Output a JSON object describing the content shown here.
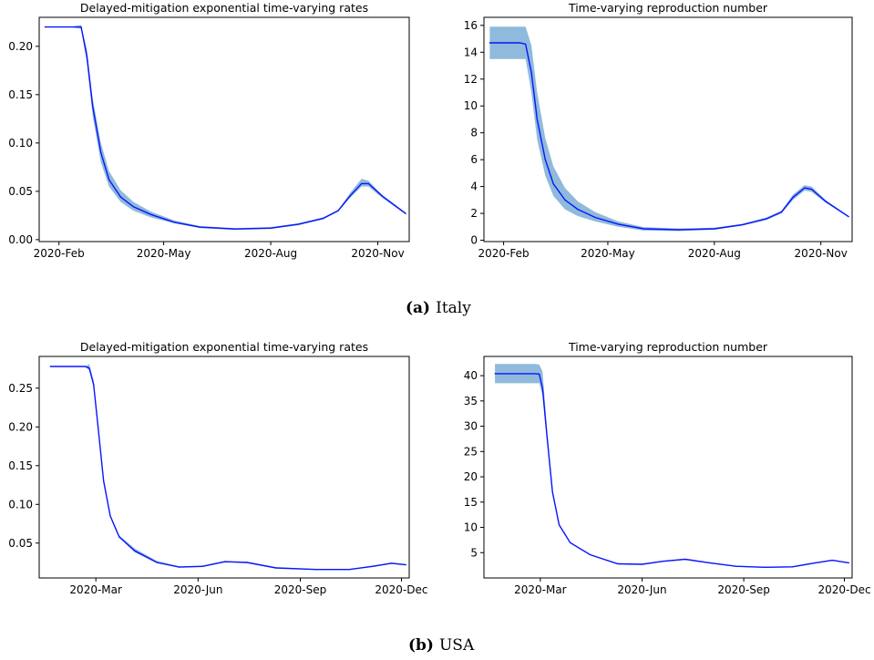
{
  "captions": {
    "a": {
      "tag": "(a)",
      "text": "Italy"
    },
    "b": {
      "tag": "(b)",
      "text": "USA"
    }
  },
  "colors": {
    "line": "#0a14ff",
    "band": "#8fbadb",
    "axis": "#000000"
  },
  "chart_data": [
    {
      "type": "line",
      "title": "Delayed-mitigation exponential time-varying rates",
      "xlabel": "",
      "ylabel": "",
      "xlim": [
        "2020-01-15",
        "2020-11-28"
      ],
      "ylim": [
        -0.002,
        0.23
      ],
      "xticks": [
        {
          "value": "2020-02-01",
          "label": "2020-Feb"
        },
        {
          "value": "2020-05-01",
          "label": "2020-May"
        },
        {
          "value": "2020-08-01",
          "label": "2020-Aug"
        },
        {
          "value": "2020-11-01",
          "label": "2020-Nov"
        }
      ],
      "yticks": [
        {
          "value": 0.0,
          "label": "0.00"
        },
        {
          "value": 0.05,
          "label": "0.05"
        },
        {
          "value": 0.1,
          "label": "0.10"
        },
        {
          "value": 0.15,
          "label": "0.15"
        },
        {
          "value": 0.2,
          "label": "0.20"
        }
      ],
      "grid": false,
      "series": [
        {
          "points": [
            [
              "2020-01-20",
              0.22,
              0.22,
              0.22
            ],
            [
              "2020-02-10",
              0.22,
              0.22,
              0.22
            ],
            [
              "2020-02-20",
              0.22,
              0.218,
              0.222
            ],
            [
              "2020-02-25",
              0.19,
              0.183,
              0.197
            ],
            [
              "2020-03-01",
              0.138,
              0.128,
              0.146
            ],
            [
              "2020-03-08",
              0.09,
              0.08,
              0.1
            ],
            [
              "2020-03-15",
              0.062,
              0.055,
              0.071
            ],
            [
              "2020-03-25",
              0.044,
              0.039,
              0.051
            ],
            [
              "2020-04-05",
              0.034,
              0.03,
              0.039
            ],
            [
              "2020-04-20",
              0.026,
              0.023,
              0.029
            ],
            [
              "2020-05-10",
              0.018,
              0.017,
              0.02
            ],
            [
              "2020-06-01",
              0.013,
              0.012,
              0.014
            ],
            [
              "2020-07-01",
              0.011,
              0.01,
              0.012
            ],
            [
              "2020-08-01",
              0.012,
              0.011,
              0.013
            ],
            [
              "2020-08-25",
              0.016,
              0.015,
              0.017
            ],
            [
              "2020-09-15",
              0.022,
              0.021,
              0.023
            ],
            [
              "2020-09-28",
              0.03,
              0.029,
              0.031
            ],
            [
              "2020-10-08",
              0.045,
              0.043,
              0.048
            ],
            [
              "2020-10-18",
              0.058,
              0.055,
              0.063
            ],
            [
              "2020-10-24",
              0.058,
              0.055,
              0.061
            ],
            [
              "2020-11-05",
              0.045,
              0.043,
              0.046
            ],
            [
              "2020-11-25",
              0.027,
              0.026,
              0.028
            ]
          ]
        }
      ]
    },
    {
      "type": "line",
      "title": "Time-varying reproduction number",
      "xlabel": "",
      "ylabel": "",
      "xlim": [
        "2020-01-15",
        "2020-11-28"
      ],
      "ylim": [
        -0.1,
        16.6
      ],
      "xticks": [
        {
          "value": "2020-02-01",
          "label": "2020-Feb"
        },
        {
          "value": "2020-05-01",
          "label": "2020-May"
        },
        {
          "value": "2020-08-01",
          "label": "2020-Aug"
        },
        {
          "value": "2020-11-01",
          "label": "2020-Nov"
        }
      ],
      "yticks": [
        {
          "value": 0,
          "label": "0"
        },
        {
          "value": 2,
          "label": "2"
        },
        {
          "value": 4,
          "label": "4"
        },
        {
          "value": 6,
          "label": "6"
        },
        {
          "value": 8,
          "label": "8"
        },
        {
          "value": 10,
          "label": "10"
        },
        {
          "value": 12,
          "label": "12"
        },
        {
          "value": 14,
          "label": "14"
        },
        {
          "value": 16,
          "label": "16"
        }
      ],
      "grid": false,
      "series": [
        {
          "points": [
            [
              "2020-01-20",
              14.7,
              13.5,
              15.9
            ],
            [
              "2020-02-15",
              14.7,
              13.5,
              15.9
            ],
            [
              "2020-02-20",
              14.6,
              13.5,
              15.9
            ],
            [
              "2020-02-25",
              12.5,
              11.0,
              14.5
            ],
            [
              "2020-03-01",
              9.0,
              7.5,
              11.0
            ],
            [
              "2020-03-08",
              6.0,
              4.8,
              7.6
            ],
            [
              "2020-03-15",
              4.2,
              3.3,
              5.5
            ],
            [
              "2020-03-25",
              3.0,
              2.3,
              3.9
            ],
            [
              "2020-04-05",
              2.3,
              1.8,
              2.9
            ],
            [
              "2020-04-20",
              1.7,
              1.4,
              2.1
            ],
            [
              "2020-05-10",
              1.2,
              1.0,
              1.4
            ],
            [
              "2020-06-01",
              0.85,
              0.72,
              0.98
            ],
            [
              "2020-07-01",
              0.78,
              0.68,
              0.88
            ],
            [
              "2020-08-01",
              0.85,
              0.78,
              0.93
            ],
            [
              "2020-08-25",
              1.15,
              1.08,
              1.22
            ],
            [
              "2020-09-15",
              1.6,
              1.5,
              1.7
            ],
            [
              "2020-09-28",
              2.1,
              2.0,
              2.2
            ],
            [
              "2020-10-08",
              3.2,
              3.0,
              3.4
            ],
            [
              "2020-10-18",
              3.9,
              3.7,
              4.1
            ],
            [
              "2020-10-24",
              3.8,
              3.6,
              4.0
            ],
            [
              "2020-11-05",
              2.9,
              2.8,
              3.0
            ],
            [
              "2020-11-25",
              1.75,
              1.7,
              1.8
            ]
          ]
        }
      ]
    },
    {
      "type": "line",
      "title": "Delayed-mitigation exponential time-varying rates",
      "xlabel": "",
      "ylabel": "",
      "xlim": [
        "2020-01-10",
        "2020-12-08"
      ],
      "ylim": [
        0.005,
        0.291
      ],
      "xticks": [
        {
          "value": "2020-03-01",
          "label": "2020-Mar"
        },
        {
          "value": "2020-06-01",
          "label": "2020-Jun"
        },
        {
          "value": "2020-09-01",
          "label": "2020-Sep"
        },
        {
          "value": "2020-12-01",
          "label": "2020-Dec"
        }
      ],
      "yticks": [
        {
          "value": 0.05,
          "label": "0.05"
        },
        {
          "value": 0.1,
          "label": "0.10"
        },
        {
          "value": 0.15,
          "label": "0.15"
        },
        {
          "value": 0.2,
          "label": "0.20"
        },
        {
          "value": 0.25,
          "label": "0.25"
        }
      ],
      "grid": false,
      "series": [
        {
          "points": [
            [
              "2020-01-20",
              0.278,
              0.278,
              0.278
            ],
            [
              "2020-02-20",
              0.278,
              0.278,
              0.278
            ],
            [
              "2020-02-24",
              0.276,
              0.273,
              0.281
            ],
            [
              "2020-02-28",
              0.255,
              0.251,
              0.26
            ],
            [
              "2020-03-03",
              0.2,
              0.197,
              0.203
            ],
            [
              "2020-03-08",
              0.13,
              0.128,
              0.132
            ],
            [
              "2020-03-14",
              0.085,
              0.084,
              0.086
            ],
            [
              "2020-03-22",
              0.058,
              0.057,
              0.06
            ],
            [
              "2020-04-05",
              0.04,
              0.038,
              0.043
            ],
            [
              "2020-04-25",
              0.025,
              0.024,
              0.027
            ],
            [
              "2020-05-15",
              0.019,
              0.0185,
              0.02
            ],
            [
              "2020-06-05",
              0.02,
              0.0195,
              0.021
            ],
            [
              "2020-06-25",
              0.026,
              0.0255,
              0.027
            ],
            [
              "2020-07-15",
              0.025,
              0.0245,
              0.026
            ],
            [
              "2020-08-10",
              0.018,
              0.0175,
              0.019
            ],
            [
              "2020-09-15",
              0.016,
              0.0155,
              0.0165
            ],
            [
              "2020-10-15",
              0.016,
              0.0155,
              0.0165
            ],
            [
              "2020-11-05",
              0.02,
              0.0195,
              0.021
            ],
            [
              "2020-11-22",
              0.024,
              0.0235,
              0.025
            ],
            [
              "2020-12-05",
              0.022,
              0.0215,
              0.023
            ]
          ]
        }
      ]
    },
    {
      "type": "line",
      "title": "Time-varying reproduction number",
      "xlabel": "",
      "ylabel": "",
      "xlim": [
        "2020-01-10",
        "2020-12-08"
      ],
      "ylim": [
        0,
        43.8
      ],
      "xticks": [
        {
          "value": "2020-03-01",
          "label": "2020-Mar"
        },
        {
          "value": "2020-06-01",
          "label": "2020-Jun"
        },
        {
          "value": "2020-09-01",
          "label": "2020-Sep"
        },
        {
          "value": "2020-12-01",
          "label": "2020-Dec"
        }
      ],
      "yticks": [
        {
          "value": 5,
          "label": "5"
        },
        {
          "value": 10,
          "label": "10"
        },
        {
          "value": 15,
          "label": "15"
        },
        {
          "value": 20,
          "label": "20"
        },
        {
          "value": 25,
          "label": "25"
        },
        {
          "value": 30,
          "label": "30"
        },
        {
          "value": 35,
          "label": "35"
        },
        {
          "value": 40,
          "label": "40"
        }
      ],
      "grid": false,
      "series": [
        {
          "points": [
            [
              "2020-01-20",
              40.4,
              38.5,
              42.3
            ],
            [
              "2020-02-25",
              40.4,
              38.5,
              42.3
            ],
            [
              "2020-02-29",
              40.3,
              38.5,
              42.2
            ],
            [
              "2020-03-03",
              37.5,
              36.0,
              40.8
            ],
            [
              "2020-03-07",
              28.0,
              27.0,
              29.5
            ],
            [
              "2020-03-12",
              17.0,
              16.6,
              17.4
            ],
            [
              "2020-03-18",
              10.5,
              10.3,
              10.7
            ],
            [
              "2020-03-28",
              7.0,
              6.9,
              7.1
            ],
            [
              "2020-04-15",
              4.6,
              4.5,
              4.7
            ],
            [
              "2020-05-10",
              2.8,
              2.7,
              2.9
            ],
            [
              "2020-06-01",
              2.7,
              2.6,
              2.8
            ],
            [
              "2020-06-20",
              3.3,
              3.2,
              3.4
            ],
            [
              "2020-07-10",
              3.7,
              3.6,
              3.8
            ],
            [
              "2020-08-01",
              3.0,
              2.9,
              3.1
            ],
            [
              "2020-08-25",
              2.3,
              2.2,
              2.4
            ],
            [
              "2020-09-20",
              2.1,
              2.0,
              2.2
            ],
            [
              "2020-10-15",
              2.2,
              2.1,
              2.3
            ],
            [
              "2020-11-05",
              3.0,
              2.9,
              3.1
            ],
            [
              "2020-11-20",
              3.5,
              3.4,
              3.6
            ],
            [
              "2020-12-05",
              3.0,
              2.9,
              3.1
            ]
          ]
        }
      ]
    }
  ]
}
